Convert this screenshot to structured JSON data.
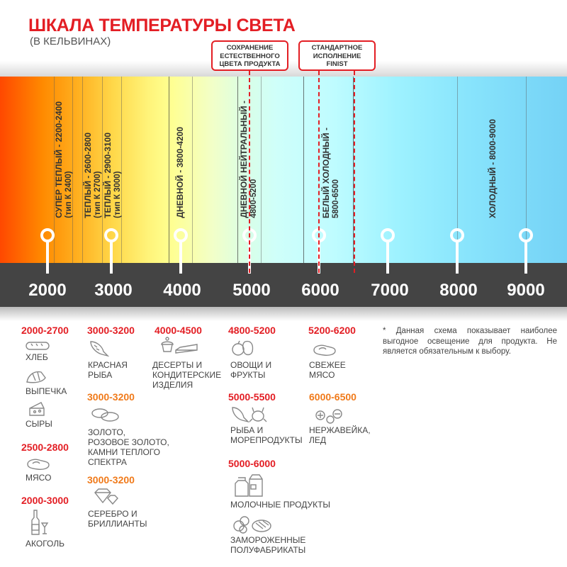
{
  "title": "ШКАЛА ТЕМПЕРАТУРЫ СВЕТА",
  "subtitle": "(В КЕЛЬВИНАХ)",
  "callouts": [
    {
      "lines": [
        "СОХРАНЕНИЕ",
        "ЕСТЕСТВЕННОГО",
        "ЦВЕТА ПРОДУКТА"
      ]
    },
    {
      "lines": [
        "СТАНДАРТНОЕ",
        "ИСПОЛНЕНИЕ",
        "FINIST"
      ]
    }
  ],
  "scale": [
    "2000",
    "3000",
    "4000",
    "5000",
    "6000",
    "7000",
    "8000",
    "9000"
  ],
  "zones": [
    {
      "l1": "СУПЕР ТЕПЛЫЙ - 2200-2400",
      "l2": "(тип К 2400)"
    },
    {
      "l1": "ТЕПЛЫЙ - 2600-2800",
      "l2": "(тип К 2700)"
    },
    {
      "l1": "ТЕПЛЫЙ - 2900-3100",
      "l2": "(тип К 3000)"
    },
    {
      "l1": "ДНЕВНОЙ - 3800-4200"
    },
    {
      "l1": "ДНЕВНОЙ НЕЙТРАЛЬНЫЙ -",
      "l2": "4800-5200"
    },
    {
      "l1": "БЕЛЫЙ ХОЛОДНЫЙ -",
      "l2": "5800-6500"
    },
    {
      "l1": "ХОЛОДНЫЙ - 8000-9000"
    }
  ],
  "colors": {
    "accent": "#e31e24",
    "secondary": "#f07a1a",
    "band": "#444444"
  },
  "products": {
    "r1": "2000-2700",
    "bread": "ХЛЕБ",
    "pastry": "ВЫПЕЧКА",
    "cheese": "СЫРЫ",
    "r2": "2500-2800",
    "meat": "МЯСО",
    "r3": "2000-3000",
    "alcohol": "АКОГОЛЬ",
    "r4": "3000-3200",
    "redfish": [
      "КРАСНАЯ",
      "РЫБА"
    ],
    "r5": "3000-3200",
    "gold": [
      "ЗОЛОТО,",
      "РОЗОВОЕ ЗОЛОТО,",
      "КАМНИ ТЕПЛОГО",
      "СПЕКТРА"
    ],
    "r6": "3000-3200",
    "silver": [
      "СЕРЕБРО И",
      "БРИЛЛИАНТЫ"
    ],
    "r7": "4000-4500",
    "desserts": [
      "ДЕСЕРТЫ И",
      "КОНДИТЕРСКИЕ",
      "ИЗДЕЛИЯ"
    ],
    "r8": "4800-5200",
    "veg": [
      "ОВОЩИ И",
      "ФРУКТЫ"
    ],
    "r9": "5000-5500",
    "seafood": [
      "РЫБА И",
      "МОРЕПРОДУКТЫ"
    ],
    "r10": "5000-6000",
    "dairy": "МОЛОЧНЫЕ ПРОДУКТЫ",
    "frozen": [
      "ЗАМОРОЖЕННЫЕ",
      "ПОЛУФАБРИКАТЫ"
    ],
    "r11": "5200-6200",
    "freshmeat": [
      "СВЕЖЕЕ",
      "МЯСО"
    ],
    "r12": "6000-6500",
    "steel": [
      "НЕРЖАВЕЙКА,",
      "ЛЕД"
    ]
  },
  "note": "*  Данная схема показывает наиболее выгодное освещение для продукта. Не является обязательным к выбору."
}
